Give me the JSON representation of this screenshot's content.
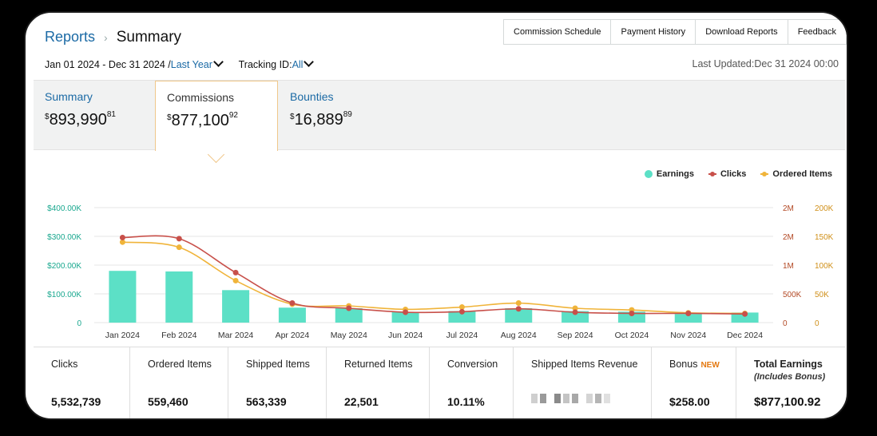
{
  "breadcrumb": {
    "parent": "Reports",
    "separator": "›",
    "current": "Summary"
  },
  "top_tabs": [
    "Commission Schedule",
    "Payment History",
    "Download Reports",
    "Feedback"
  ],
  "filters": {
    "date_range": "Jan 01 2024 - Dec 31 2024 /",
    "range_link": "Last Year",
    "tracking_label": "Tracking ID:",
    "tracking_value": "All"
  },
  "last_updated": "Last Updated:Dec 31 2024 00:00",
  "cards": [
    {
      "label": "Summary",
      "currency": "$",
      "whole": "893,990",
      "cents": "81"
    },
    {
      "label": "Commissions",
      "currency": "$",
      "whole": "877,100",
      "cents": "92"
    },
    {
      "label": "Bounties",
      "currency": "$",
      "whole": "16,889",
      "cents": "89"
    }
  ],
  "chart_data": {
    "type": "bar",
    "categories": [
      "Jan 2024",
      "Feb 2024",
      "Mar 2024",
      "Apr 2024",
      "May 2024",
      "Jun 2024",
      "Jul 2024",
      "Aug 2024",
      "Sep 2024",
      "Oct 2024",
      "Nov 2024",
      "Dec 2024"
    ],
    "series": [
      {
        "name": "Earnings",
        "type": "bar",
        "axis": "left",
        "color": "#5ce0c6",
        "values": [
          180000,
          178000,
          113000,
          52000,
          50000,
          37000,
          40000,
          50000,
          40000,
          38000,
          30000,
          35000
        ]
      },
      {
        "name": "Clicks",
        "type": "line",
        "axis": "right1",
        "color": "#c8504a",
        "values": [
          1480000,
          1460000,
          870000,
          340000,
          250000,
          180000,
          190000,
          240000,
          180000,
          160000,
          160000,
          150000
        ]
      },
      {
        "name": "Ordered Items",
        "type": "line",
        "axis": "right2",
        "color": "#f0b43a",
        "values": [
          140000,
          131000,
          73000,
          32000,
          29000,
          23000,
          27000,
          34000,
          25000,
          22000,
          17000,
          16000
        ]
      }
    ],
    "left_axis": {
      "ticks": [
        "0",
        "$100.00K",
        "$200.00K",
        "$300.00K",
        "$400.00K"
      ],
      "max": 400000,
      "color": "#1aa88f"
    },
    "right1_axis": {
      "ticks": [
        "0",
        "500K",
        "1M",
        "2M",
        "2M"
      ],
      "max": 2000000,
      "color": "#b34a26"
    },
    "right2_axis": {
      "ticks": [
        "0",
        "50K",
        "100K",
        "150K",
        "200K"
      ],
      "max": 200000,
      "color": "#d0901a"
    },
    "legend_position": "top-right",
    "grid": true
  },
  "stats": [
    {
      "label": "Clicks",
      "value": "5,532,739"
    },
    {
      "label": "Ordered Items",
      "value": "559,460"
    },
    {
      "label": "Shipped Items",
      "value": "563,339"
    },
    {
      "label": "Returned Items",
      "value": "22,501"
    },
    {
      "label": "Conversion",
      "value": "10.11%"
    },
    {
      "label": "Shipped Items Revenue",
      "value": ""
    },
    {
      "label": "Bonus",
      "badge": "NEW",
      "value": "$258.00"
    },
    {
      "label": "Total Earnings",
      "sublabel": "(Includes Bonus)",
      "value": "$877,100.92"
    }
  ]
}
